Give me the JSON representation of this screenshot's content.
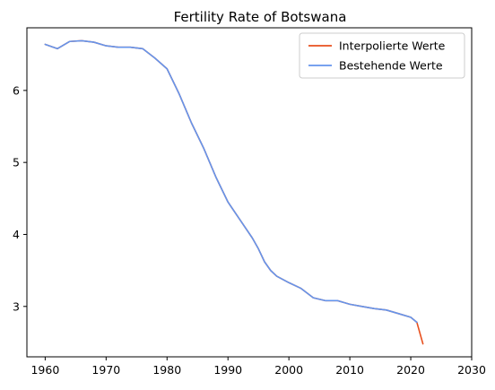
{
  "chart_data": {
    "type": "line",
    "title": "Fertility Rate of Botswana",
    "xlabel": "",
    "ylabel": "",
    "xlim": [
      1957,
      2030
    ],
    "ylim": [
      2.3,
      6.87
    ],
    "xticks": [
      1960,
      1970,
      1980,
      1990,
      2000,
      2010,
      2020,
      2030
    ],
    "yticks": [
      3,
      4,
      5,
      6
    ],
    "grid": false,
    "legend_position": "top-right",
    "series": [
      {
        "name": "Interpolierte Werte",
        "color": "#e8501e",
        "x": [
          1960,
          1962,
          1964,
          1966,
          1968,
          1970,
          1972,
          1974,
          1976,
          1978,
          1980,
          1982,
          1984,
          1986,
          1988,
          1990,
          1992,
          1994,
          1995,
          1996,
          1997,
          1998,
          2000,
          2002,
          2004,
          2006,
          2008,
          2010,
          2012,
          2014,
          2016,
          2018,
          2020,
          2021,
          2022
        ],
        "y": [
          6.64,
          6.58,
          6.68,
          6.69,
          6.67,
          6.62,
          6.6,
          6.6,
          6.58,
          6.45,
          6.3,
          5.95,
          5.55,
          5.2,
          4.8,
          4.45,
          4.2,
          3.95,
          3.8,
          3.62,
          3.5,
          3.42,
          3.33,
          3.25,
          3.12,
          3.08,
          3.08,
          3.03,
          3.0,
          2.97,
          2.95,
          2.9,
          2.85,
          2.78,
          2.48
        ]
      },
      {
        "name": "Bestehende Werte",
        "color": "#6495ed",
        "x": [
          1960,
          1962,
          1964,
          1966,
          1968,
          1970,
          1972,
          1974,
          1976,
          1978,
          1980,
          1982,
          1984,
          1986,
          1988,
          1990,
          1992,
          1994,
          1995,
          1996,
          1997,
          1998,
          2000,
          2002,
          2004,
          2006,
          2008,
          2010,
          2012,
          2014,
          2016,
          2018,
          2020,
          2021
        ],
        "y": [
          6.64,
          6.58,
          6.68,
          6.69,
          6.67,
          6.62,
          6.6,
          6.6,
          6.58,
          6.45,
          6.3,
          5.95,
          5.55,
          5.2,
          4.8,
          4.45,
          4.2,
          3.95,
          3.8,
          3.62,
          3.5,
          3.42,
          3.33,
          3.25,
          3.12,
          3.08,
          3.08,
          3.03,
          3.0,
          2.97,
          2.95,
          2.9,
          2.85,
          2.78
        ]
      }
    ]
  }
}
